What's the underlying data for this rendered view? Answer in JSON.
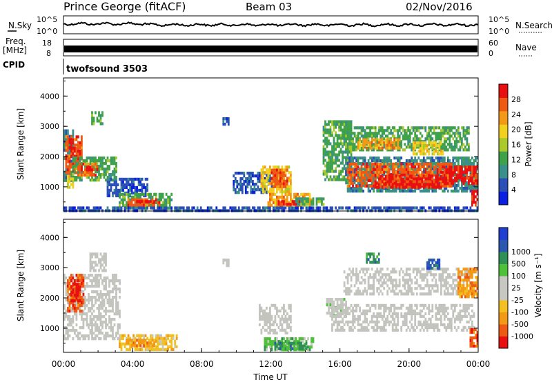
{
  "header": {
    "title": "Prince George (fitACF)",
    "beam": "Beam 03",
    "date": "02/Nov/2016"
  },
  "side_labels": {
    "nsky": "N.Sky",
    "freq_line1": "Freq.",
    "freq_line2": "[MHz]",
    "cpid": "CPID",
    "nsearch": "N.Search",
    "nave": "Nave",
    "cpid_value": "twofsound 3503"
  },
  "strip_axes": {
    "noise_left_top": "10^5",
    "noise_left_bottom": "10^0",
    "noise_right_top": "10^5",
    "noise_right_bottom": "10^0",
    "freq_left_top": "18",
    "freq_left_bottom": "8",
    "freq_right_top": "60",
    "freq_right_bottom": "0"
  },
  "colors": {
    "power": [
      "#0b1fe0",
      "#2a50b8",
      "#3a8f8a",
      "#3fa24a",
      "#a9c92c",
      "#f2d020",
      "#f29a18",
      "#ee5a14",
      "#e81010"
    ],
    "velocity": [
      "#e81010",
      "#ee5a14",
      "#f29a18",
      "#f2c020",
      "#c8c8c2",
      "#c8c8c2",
      "#4fc03a",
      "#2f8f55",
      "#2a58b0",
      "#1f3fd0"
    ],
    "ground_scatter": "#c4c4be"
  },
  "chart_data": [
    {
      "type": "heatmap",
      "name": "power",
      "ylabel": "Slant Range [km]",
      "ylim": [
        200,
        4600
      ],
      "yticks": [
        "1000",
        "2000",
        "3000",
        "4000"
      ],
      "colorbar_label": "Power [dB]",
      "colorbar_range": [
        0,
        32
      ],
      "colorbar_ticks": [
        "4",
        "8",
        "12",
        "16",
        "20",
        "24",
        "28"
      ],
      "bands": [
        {
          "t0": 0.0,
          "t1": 0.5,
          "r0": 1200,
          "r1": 2900,
          "level": 2
        },
        {
          "t0": 0.1,
          "t1": 1.0,
          "r0": 1500,
          "r1": 2700,
          "level": 7
        },
        {
          "t0": 0.4,
          "t1": 0.9,
          "r0": 2000,
          "r1": 2500,
          "level": 8
        },
        {
          "t0": 0.5,
          "t1": 3.0,
          "r0": 1200,
          "r1": 2000,
          "level": 3
        },
        {
          "t0": 0.8,
          "t1": 1.9,
          "r0": 1400,
          "r1": 1800,
          "level": 7
        },
        {
          "t0": 1.0,
          "t1": 1.6,
          "r0": 1550,
          "r1": 1700,
          "level": 8
        },
        {
          "t0": 0.2,
          "t1": 0.5,
          "r0": 950,
          "r1": 1400,
          "level": 5
        },
        {
          "t0": 2.5,
          "t1": 4.8,
          "r0": 700,
          "r1": 1300,
          "level": 1
        },
        {
          "t0": 3.2,
          "t1": 6.2,
          "r0": 300,
          "r1": 800,
          "level": 3
        },
        {
          "t0": 3.7,
          "t1": 5.5,
          "r0": 420,
          "r1": 620,
          "level": 7
        },
        {
          "t0": 4.2,
          "t1": 5.2,
          "r0": 470,
          "r1": 560,
          "level": 8
        },
        {
          "t0": 1.6,
          "t1": 2.2,
          "r0": 3100,
          "r1": 3500,
          "level": 3
        },
        {
          "t0": 9.2,
          "t1": 9.6,
          "r0": 3100,
          "r1": 3300,
          "level": 1
        },
        {
          "t0": 9.8,
          "t1": 12.0,
          "r0": 800,
          "r1": 1500,
          "level": 1
        },
        {
          "t0": 11.4,
          "t1": 13.2,
          "r0": 800,
          "r1": 1700,
          "level": 5
        },
        {
          "t0": 12.0,
          "t1": 13.0,
          "r0": 1000,
          "r1": 1600,
          "level": 7
        },
        {
          "t0": 11.8,
          "t1": 14.3,
          "r0": 350,
          "r1": 800,
          "level": 6
        },
        {
          "t0": 12.4,
          "t1": 13.8,
          "r0": 380,
          "r1": 560,
          "level": 8
        },
        {
          "t0": 13.4,
          "t1": 15.0,
          "r0": 450,
          "r1": 650,
          "level": 3
        },
        {
          "t0": 15.0,
          "t1": 16.6,
          "r0": 1200,
          "r1": 3200,
          "level": 3
        },
        {
          "t0": 16.3,
          "t1": 24.0,
          "r0": 850,
          "r1": 2000,
          "level": 2
        },
        {
          "t0": 16.4,
          "t1": 22.5,
          "r0": 1000,
          "r1": 1800,
          "level": 7
        },
        {
          "t0": 18.0,
          "t1": 22.0,
          "r0": 1000,
          "r1": 1400,
          "level": 8
        },
        {
          "t0": 22.0,
          "t1": 24.0,
          "r0": 1100,
          "r1": 1700,
          "level": 8
        },
        {
          "t0": 16.2,
          "t1": 23.5,
          "r0": 2200,
          "r1": 3000,
          "level": 3
        },
        {
          "t0": 17.0,
          "t1": 19.5,
          "r0": 2300,
          "r1": 2600,
          "level": 6
        },
        {
          "t0": 20.2,
          "t1": 22.0,
          "r0": 2100,
          "r1": 2500,
          "level": 5
        },
        {
          "t0": 23.6,
          "t1": 24.0,
          "r0": 400,
          "r1": 900,
          "level": 8
        },
        {
          "t0": 0.0,
          "t1": 24.0,
          "r0": 200,
          "r1": 350,
          "level": 1
        }
      ]
    },
    {
      "type": "heatmap",
      "name": "velocity",
      "xlabel": "Time UT",
      "ylabel": "Slant Range [km]",
      "ylim": [
        200,
        4600
      ],
      "xlim": [
        0,
        24
      ],
      "xticks": [
        "00:00",
        "04:00",
        "08:00",
        "12:00",
        "16:00",
        "20:00",
        "00:00"
      ],
      "yticks": [
        "1000",
        "2000",
        "3000",
        "4000"
      ],
      "colorbar_label": "Velocity [m s⁻¹]",
      "colorbar_ticks": [
        "-1000",
        "-500",
        "-100",
        "-25",
        "25",
        "100",
        "500",
        "1000"
      ],
      "bands": [
        {
          "t0": 0.0,
          "t1": 3.2,
          "r0": 700,
          "r1": 2800,
          "level": 4,
          "gs": true
        },
        {
          "t0": 0.2,
          "t1": 1.1,
          "r0": 1600,
          "r1": 2800,
          "level": 1
        },
        {
          "t0": 0.4,
          "t1": 0.9,
          "r0": 1900,
          "r1": 2500,
          "level": 0
        },
        {
          "t0": 1.5,
          "t1": 2.4,
          "r0": 2900,
          "r1": 3500,
          "level": 4,
          "gs": true
        },
        {
          "t0": 3.2,
          "t1": 6.5,
          "r0": 300,
          "r1": 800,
          "level": 3
        },
        {
          "t0": 3.6,
          "t1": 5.2,
          "r0": 380,
          "r1": 650,
          "level": 2
        },
        {
          "t0": 9.2,
          "t1": 9.6,
          "r0": 3100,
          "r1": 3300,
          "level": 4,
          "gs": true
        },
        {
          "t0": 11.3,
          "t1": 13.2,
          "r0": 800,
          "r1": 1800,
          "level": 4,
          "gs": true
        },
        {
          "t0": 11.6,
          "t1": 14.4,
          "r0": 300,
          "r1": 700,
          "level": 6
        },
        {
          "t0": 12.2,
          "t1": 14.0,
          "r0": 350,
          "r1": 550,
          "level": 7
        },
        {
          "t0": 15.2,
          "t1": 16.4,
          "r0": 1400,
          "r1": 2000,
          "level": 5
        },
        {
          "t0": 15.5,
          "t1": 23.8,
          "r0": 900,
          "r1": 1800,
          "level": 4,
          "gs": true
        },
        {
          "t0": 16.2,
          "t1": 23.5,
          "r0": 2100,
          "r1": 3000,
          "level": 4,
          "gs": true
        },
        {
          "t0": 17.5,
          "t1": 18.3,
          "r0": 3200,
          "r1": 3500,
          "level": 7
        },
        {
          "t0": 21.0,
          "t1": 21.8,
          "r0": 3000,
          "r1": 3300,
          "level": 8
        },
        {
          "t0": 22.8,
          "t1": 24.0,
          "r0": 2000,
          "r1": 3000,
          "level": 2
        },
        {
          "t0": 23.5,
          "t1": 24.0,
          "r0": 400,
          "r1": 1000,
          "level": 1
        }
      ]
    }
  ]
}
